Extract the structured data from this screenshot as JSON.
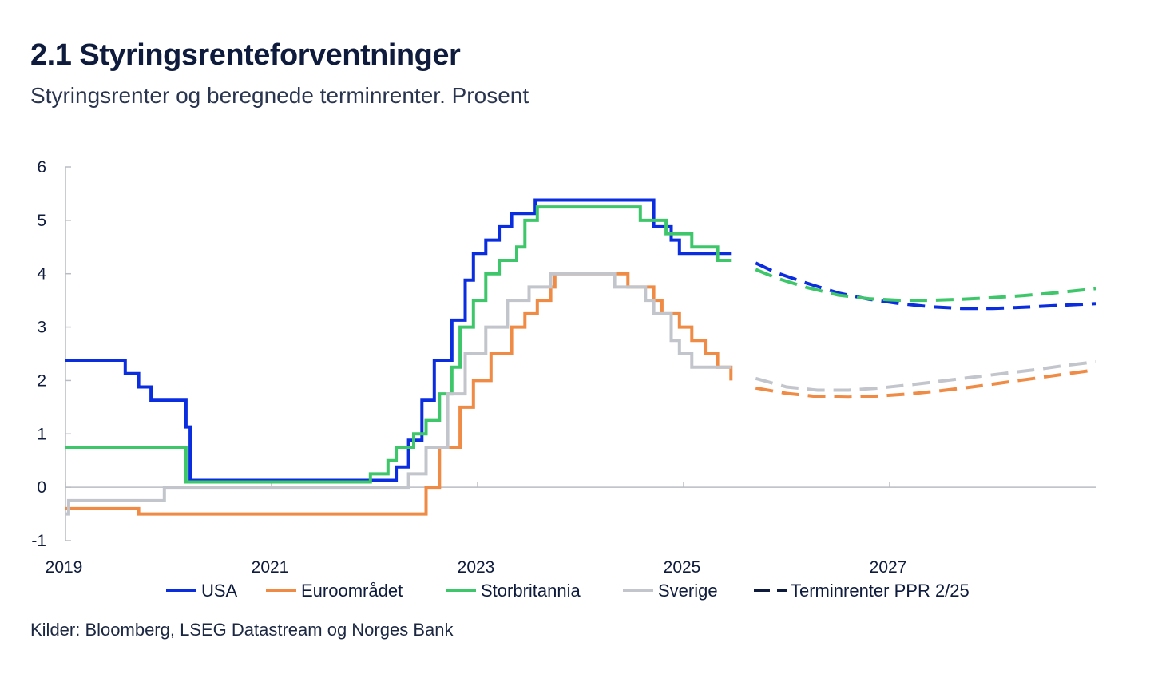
{
  "header": {
    "title": "2.1 Styringsrenteforventninger",
    "subtitle": "Styringsrenter og beregnede terminrenter. Prosent"
  },
  "footer": {
    "source": "Kilder: Bloomberg, LSEG  Datastream og Norges Bank"
  },
  "chart_data": {
    "type": "line",
    "title": "2.1 Styringsrenteforventninger",
    "subtitle": "Styringsrenter og beregnede terminrenter. Prosent",
    "xlabel": "",
    "ylabel": "",
    "xlim": [
      2019,
      2029
    ],
    "ylim": [
      -1,
      6
    ],
    "x_ticks": [
      2019,
      2021,
      2023,
      2025,
      2027
    ],
    "x_tick_labels": [
      "2019",
      "2021",
      "2023",
      "2025",
      "2027"
    ],
    "y_ticks": [
      -1,
      0,
      1,
      2,
      3,
      4,
      5,
      6
    ],
    "y_tick_labels": [
      "-1",
      "0",
      "1",
      "2",
      "3",
      "4",
      "5",
      "6"
    ],
    "grid": false,
    "legend_position": "bottom",
    "legend_dashed_label": "Terminrenter PPR 2/25",
    "series": [
      {
        "name": "USA",
        "color": "#0b2de0",
        "step": [
          [
            2019.0,
            2.38
          ],
          [
            2019.58,
            2.13
          ],
          [
            2019.71,
            1.88
          ],
          [
            2019.83,
            1.63
          ],
          [
            2020.17,
            1.13
          ],
          [
            2020.21,
            0.13
          ],
          [
            2022.21,
            0.38
          ],
          [
            2022.33,
            0.88
          ],
          [
            2022.46,
            1.63
          ],
          [
            2022.58,
            2.38
          ],
          [
            2022.75,
            3.13
          ],
          [
            2022.88,
            3.88
          ],
          [
            2022.96,
            4.38
          ],
          [
            2023.08,
            4.63
          ],
          [
            2023.21,
            4.88
          ],
          [
            2023.33,
            5.13
          ],
          [
            2023.56,
            5.38
          ],
          [
            2024.71,
            4.88
          ],
          [
            2024.88,
            4.63
          ],
          [
            2024.96,
            4.38
          ],
          [
            2025.46,
            4.38
          ]
        ],
        "forward": [
          [
            2025.7,
            4.2
          ],
          [
            2025.9,
            4.02
          ],
          [
            2026.2,
            3.82
          ],
          [
            2026.5,
            3.64
          ],
          [
            2026.8,
            3.52
          ],
          [
            2027.1,
            3.44
          ],
          [
            2027.4,
            3.38
          ],
          [
            2027.7,
            3.35
          ],
          [
            2028.0,
            3.35
          ],
          [
            2028.3,
            3.37
          ],
          [
            2028.6,
            3.4
          ],
          [
            2029.0,
            3.44
          ]
        ]
      },
      {
        "name": "Euroområdet",
        "color": "#ef8b44",
        "step": [
          [
            2019.0,
            -0.4
          ],
          [
            2019.71,
            -0.5
          ],
          [
            2022.5,
            0.0
          ],
          [
            2022.63,
            0.75
          ],
          [
            2022.83,
            1.5
          ],
          [
            2022.96,
            2.0
          ],
          [
            2023.13,
            2.5
          ],
          [
            2023.33,
            3.0
          ],
          [
            2023.46,
            3.25
          ],
          [
            2023.58,
            3.5
          ],
          [
            2023.71,
            3.75
          ],
          [
            2023.75,
            4.0
          ],
          [
            2024.46,
            3.75
          ],
          [
            2024.71,
            3.5
          ],
          [
            2024.79,
            3.25
          ],
          [
            2024.96,
            3.0
          ],
          [
            2025.08,
            2.75
          ],
          [
            2025.21,
            2.5
          ],
          [
            2025.33,
            2.25
          ],
          [
            2025.46,
            2.0
          ]
        ],
        "forward": [
          [
            2025.7,
            1.86
          ],
          [
            2026.0,
            1.76
          ],
          [
            2026.3,
            1.7
          ],
          [
            2026.6,
            1.69
          ],
          [
            2026.9,
            1.71
          ],
          [
            2027.2,
            1.75
          ],
          [
            2027.5,
            1.81
          ],
          [
            2027.8,
            1.88
          ],
          [
            2028.1,
            1.96
          ],
          [
            2028.4,
            2.04
          ],
          [
            2028.7,
            2.12
          ],
          [
            2029.0,
            2.2
          ]
        ]
      },
      {
        "name": "Storbritannia",
        "color": "#3ec76a",
        "step": [
          [
            2019.0,
            0.75
          ],
          [
            2020.17,
            0.1
          ],
          [
            2021.96,
            0.25
          ],
          [
            2022.13,
            0.5
          ],
          [
            2022.21,
            0.75
          ],
          [
            2022.38,
            1.0
          ],
          [
            2022.5,
            1.25
          ],
          [
            2022.63,
            1.75
          ],
          [
            2022.75,
            2.25
          ],
          [
            2022.83,
            3.0
          ],
          [
            2022.96,
            3.5
          ],
          [
            2023.08,
            4.0
          ],
          [
            2023.21,
            4.25
          ],
          [
            2023.38,
            4.5
          ],
          [
            2023.46,
            5.0
          ],
          [
            2023.58,
            5.25
          ],
          [
            2024.58,
            5.0
          ],
          [
            2024.83,
            4.75
          ],
          [
            2025.08,
            4.5
          ],
          [
            2025.33,
            4.25
          ],
          [
            2025.46,
            4.25
          ]
        ],
        "forward": [
          [
            2025.7,
            4.08
          ],
          [
            2025.9,
            3.92
          ],
          [
            2026.2,
            3.74
          ],
          [
            2026.5,
            3.6
          ],
          [
            2026.8,
            3.53
          ],
          [
            2027.1,
            3.5
          ],
          [
            2027.4,
            3.5
          ],
          [
            2027.7,
            3.52
          ],
          [
            2028.0,
            3.55
          ],
          [
            2028.3,
            3.59
          ],
          [
            2028.6,
            3.64
          ],
          [
            2029.0,
            3.72
          ]
        ]
      },
      {
        "name": "Sverige",
        "color": "#c2c5cc",
        "step": [
          [
            2019.0,
            -0.5
          ],
          [
            2019.03,
            -0.25
          ],
          [
            2019.96,
            0.0
          ],
          [
            2022.33,
            0.25
          ],
          [
            2022.5,
            0.75
          ],
          [
            2022.71,
            1.75
          ],
          [
            2022.88,
            2.5
          ],
          [
            2023.08,
            3.0
          ],
          [
            2023.29,
            3.5
          ],
          [
            2023.5,
            3.75
          ],
          [
            2023.71,
            4.0
          ],
          [
            2024.33,
            3.75
          ],
          [
            2024.63,
            3.5
          ],
          [
            2024.71,
            3.25
          ],
          [
            2024.88,
            2.75
          ],
          [
            2024.96,
            2.5
          ],
          [
            2025.08,
            2.25
          ],
          [
            2025.46,
            2.25
          ]
        ],
        "forward": [
          [
            2025.7,
            2.04
          ],
          [
            2026.0,
            1.88
          ],
          [
            2026.3,
            1.82
          ],
          [
            2026.6,
            1.82
          ],
          [
            2026.9,
            1.86
          ],
          [
            2027.2,
            1.92
          ],
          [
            2027.5,
            1.99
          ],
          [
            2027.8,
            2.06
          ],
          [
            2028.1,
            2.13
          ],
          [
            2028.4,
            2.2
          ],
          [
            2028.7,
            2.28
          ],
          [
            2029.0,
            2.35
          ]
        ]
      }
    ]
  }
}
